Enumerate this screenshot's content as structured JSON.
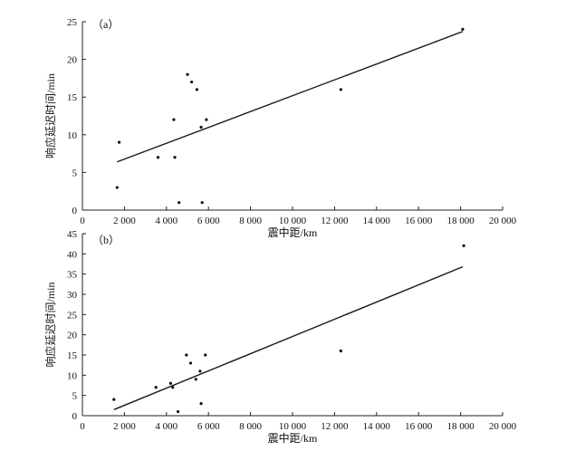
{
  "chart_data": [
    {
      "type": "scatter",
      "panel_label": "（a）",
      "xlabel": "震中距/km",
      "ylabel": "响应延迟时间/min",
      "xlim": [
        0,
        20000
      ],
      "ylim": [
        0,
        25
      ],
      "xticks": [
        0,
        2000,
        4000,
        6000,
        8000,
        10000,
        12000,
        14000,
        16000,
        18000,
        20000
      ],
      "xtick_labels": [
        "0",
        "2 000",
        "4 000",
        "6 000",
        "8 000",
        "10 000",
        "12 000",
        "14 000",
        "16 000",
        "18 000",
        "20 000"
      ],
      "yticks": [
        0,
        5,
        10,
        15,
        20,
        25
      ],
      "ytick_labels": [
        "0",
        "5",
        "10",
        "15",
        "20",
        "25"
      ],
      "points": [
        {
          "x": 1650,
          "y": 3
        },
        {
          "x": 1750,
          "y": 9
        },
        {
          "x": 3600,
          "y": 7
        },
        {
          "x": 4350,
          "y": 12
        },
        {
          "x": 4400,
          "y": 7
        },
        {
          "x": 4600,
          "y": 1
        },
        {
          "x": 5000,
          "y": 18
        },
        {
          "x": 5200,
          "y": 17
        },
        {
          "x": 5450,
          "y": 16
        },
        {
          "x": 5650,
          "y": 11
        },
        {
          "x": 5700,
          "y": 1
        },
        {
          "x": 5900,
          "y": 12
        },
        {
          "x": 12300,
          "y": 16
        },
        {
          "x": 18100,
          "y": 24
        }
      ],
      "trendline": {
        "x": [
          1650,
          18100
        ],
        "y": [
          6.4,
          23.7
        ]
      },
      "grid": false,
      "legend": "none"
    },
    {
      "type": "scatter",
      "panel_label": "（b）",
      "xlabel": "震中距/km",
      "ylabel": "响应延迟时间/min",
      "xlim": [
        0,
        20000
      ],
      "ylim": [
        0,
        45
      ],
      "xticks": [
        0,
        2000,
        4000,
        6000,
        8000,
        10000,
        12000,
        14000,
        16000,
        18000,
        20000
      ],
      "xtick_labels": [
        "0",
        "2 000",
        "4 000",
        "6 000",
        "8 000",
        "10 000",
        "12 000",
        "14 000",
        "16 000",
        "18 000",
        "20 000"
      ],
      "yticks": [
        0,
        5,
        10,
        15,
        20,
        25,
        30,
        35,
        40,
        45
      ],
      "ytick_labels": [
        "0",
        "5",
        "10",
        "15",
        "20",
        "25",
        "30",
        "35",
        "40",
        "45"
      ],
      "points": [
        {
          "x": 1500,
          "y": 4
        },
        {
          "x": 3500,
          "y": 7
        },
        {
          "x": 4200,
          "y": 8
        },
        {
          "x": 4300,
          "y": 7
        },
        {
          "x": 4550,
          "y": 1
        },
        {
          "x": 4950,
          "y": 15
        },
        {
          "x": 5150,
          "y": 13
        },
        {
          "x": 5400,
          "y": 9
        },
        {
          "x": 5600,
          "y": 11
        },
        {
          "x": 5650,
          "y": 3
        },
        {
          "x": 5850,
          "y": 15
        },
        {
          "x": 12300,
          "y": 16
        },
        {
          "x": 18150,
          "y": 42
        }
      ],
      "trendline": {
        "x": [
          1500,
          18100
        ],
        "y": [
          1.5,
          36.8
        ]
      },
      "grid": false,
      "legend": "none"
    }
  ]
}
